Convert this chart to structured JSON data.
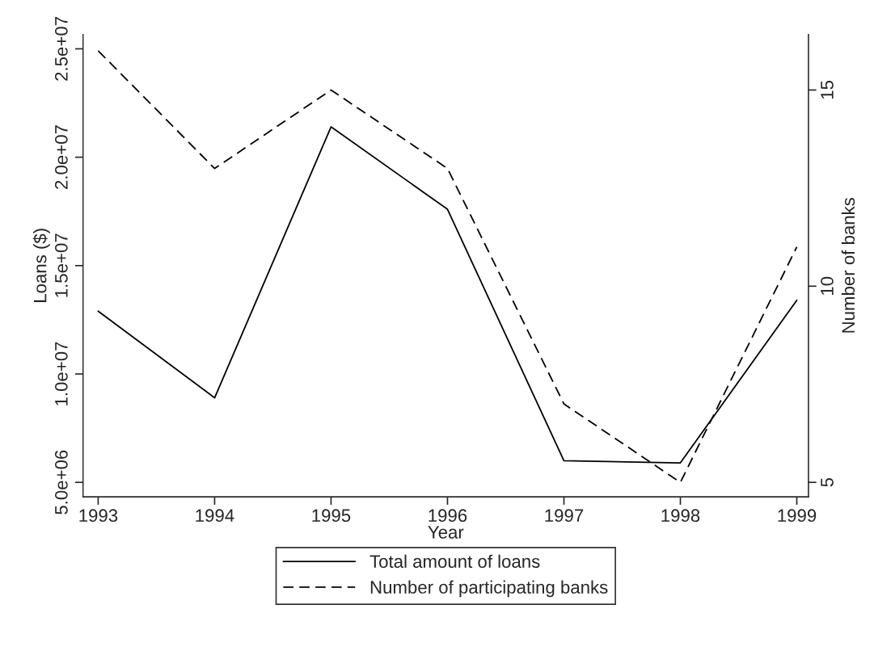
{
  "chart_data": {
    "type": "line",
    "xlabel": "Year",
    "ylabel": "Loans ($)",
    "y2label": "Number of banks",
    "x": [
      1993,
      1994,
      1995,
      1996,
      1997,
      1998,
      1999
    ],
    "series": [
      {
        "name": "Total amount of loans",
        "color": "#000000",
        "line_style": "solid",
        "values": [
          12900000,
          8900000,
          21400000,
          17600000,
          6000000,
          5900000,
          13400000
        ]
      },
      {
        "name": "Number of participating banks",
        "color": "#000000",
        "line_style": "dashed",
        "axis": "y2",
        "values": [
          16,
          13,
          15,
          13,
          7,
          5,
          11
        ]
      }
    ],
    "xlim": [
      1992.87,
      1999.1
    ],
    "xticks": [
      1993,
      1994,
      1995,
      1996,
      1997,
      1998,
      1999
    ],
    "ylim": [
      4330000,
      25670000
    ],
    "yticks": [
      {
        "value": 5000000,
        "label": "5.0e+06"
      },
      {
        "value": 10000000,
        "label": "1.0e+07"
      },
      {
        "value": 15000000,
        "label": "1.5e+07"
      },
      {
        "value": 20000000,
        "label": "2.0e+07"
      },
      {
        "value": 25000000,
        "label": "2.5e+07"
      }
    ],
    "y2lim": [
      4.63,
      16.42
    ],
    "y2ticks": [
      5,
      10,
      15
    ],
    "grid": false,
    "legend": "bottom",
    "marker": "none"
  }
}
